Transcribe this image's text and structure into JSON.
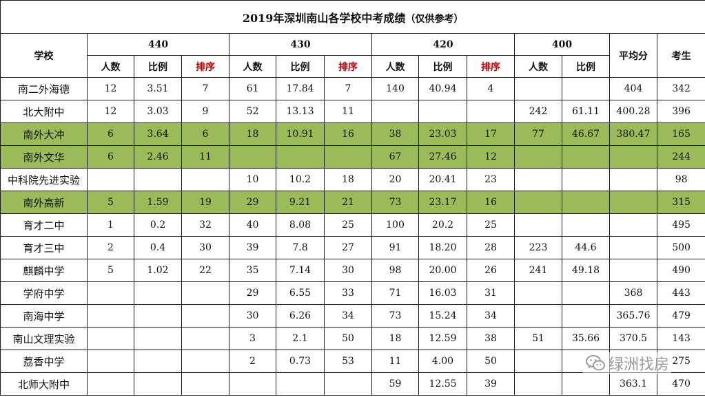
{
  "title": "2019年深圳南山各学校中考成绩",
  "title_note": "（仅供参考）",
  "header": {
    "school": "学校",
    "groups": [
      "440",
      "430",
      "420",
      "400"
    ],
    "avg": "平均分",
    "examinees": "考生",
    "sub_count": "人数",
    "sub_ratio": "比例",
    "sub_rank": "排序"
  },
  "rank_header_color": "#c00000",
  "highlight_color": "#9bbb59",
  "rows": [
    {
      "name": "南二外海德",
      "hl": false,
      "c": [
        "12",
        "3.51",
        "7",
        "61",
        "17.84",
        "7",
        "140",
        "40.94",
        "4",
        "",
        "",
        "404",
        "342"
      ]
    },
    {
      "name": "北大附中",
      "hl": false,
      "c": [
        "12",
        "3.03",
        "9",
        "52",
        "13.13",
        "11",
        "",
        "",
        "",
        "242",
        "61.11",
        "400.28",
        "396"
      ]
    },
    {
      "name": "南外大冲",
      "hl": true,
      "c": [
        "6",
        "3.64",
        "6",
        "18",
        "10.91",
        "16",
        "38",
        "23.03",
        "17",
        "77",
        "46.67",
        "380.47",
        "165"
      ]
    },
    {
      "name": "南外文华",
      "hl": true,
      "c": [
        "6",
        "2.46",
        "11",
        "",
        "",
        "",
        "67",
        "27.46",
        "12",
        "",
        "",
        "",
        "244"
      ]
    },
    {
      "name": "中科院先进实验",
      "hl": false,
      "c": [
        "",
        "",
        "",
        "10",
        "10.2",
        "18",
        "20",
        "20.41",
        "23",
        "",
        "",
        "",
        "98"
      ]
    },
    {
      "name": "南外高新",
      "hl": true,
      "c": [
        "5",
        "1.59",
        "19",
        "29",
        "9.21",
        "21",
        "73",
        "23.17",
        "16",
        "",
        "",
        "",
        "315"
      ]
    },
    {
      "name": "育才二中",
      "hl": false,
      "c": [
        "1",
        "0.2",
        "32",
        "40",
        "8.08",
        "25",
        "100",
        "20.2",
        "25",
        "",
        "",
        "",
        "495"
      ]
    },
    {
      "name": "育才三中",
      "hl": false,
      "c": [
        "2",
        "0.4",
        "30",
        "39",
        "7.8",
        "27",
        "91",
        "18.20",
        "28",
        "223",
        "44.6",
        "",
        "500"
      ]
    },
    {
      "name": "麒麟中学",
      "hl": false,
      "c": [
        "5",
        "1.02",
        "22",
        "35",
        "7.14",
        "30",
        "98",
        "20.00",
        "26",
        "241",
        "49.18",
        "",
        "490"
      ]
    },
    {
      "name": "学府中学",
      "hl": false,
      "c": [
        "",
        "",
        "",
        "29",
        "6.55",
        "33",
        "71",
        "16.03",
        "31",
        "",
        "",
        "368",
        "443"
      ]
    },
    {
      "name": "南海中学",
      "hl": false,
      "c": [
        "",
        "",
        "",
        "30",
        "6.26",
        "34",
        "73",
        "15.24",
        "34",
        "",
        "",
        "365.76",
        "479"
      ]
    },
    {
      "name": "南山文理实验",
      "hl": false,
      "c": [
        "",
        "",
        "",
        "3",
        "2.1",
        "50",
        "18",
        "12.59",
        "38",
        "51",
        "35.66",
        "370.5",
        "143"
      ]
    },
    {
      "name": "荔香中学",
      "hl": false,
      "c": [
        "",
        "",
        "",
        "2",
        "0.73",
        "53",
        "11",
        "4.00",
        "50",
        "",
        "",
        "",
        "275"
      ]
    },
    {
      "name": "北师大附中",
      "hl": false,
      "c": [
        "",
        "",
        "",
        "",
        "",
        "",
        "59",
        "12.55",
        "39",
        "",
        "",
        "363.1",
        "470"
      ]
    }
  ],
  "watermark": {
    "text": "绿洲找房",
    "icon": "wechat-icon"
  }
}
